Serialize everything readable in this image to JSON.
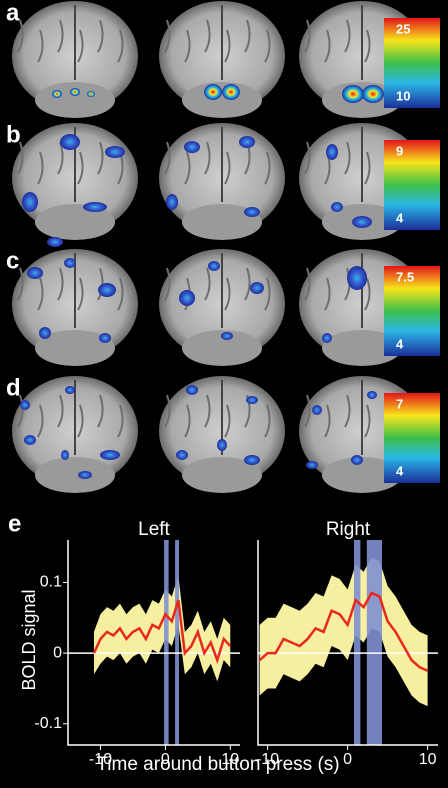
{
  "panels": [
    {
      "label": "a",
      "colorbar": {
        "max": "25",
        "min": "10"
      }
    },
    {
      "label": "b",
      "colorbar": {
        "max": "9",
        "min": "4"
      }
    },
    {
      "label": "c",
      "colorbar": {
        "max": "7.5",
        "min": "4"
      }
    },
    {
      "label": "d",
      "colorbar": {
        "max": "7",
        "min": "4"
      }
    }
  ],
  "figure": {
    "label": "e",
    "xlabel": "Time around button press (s)",
    "ylabel": "BOLD signal"
  },
  "chart_data": [
    {
      "type": "line",
      "title": "Left",
      "x": [
        -11,
        -10,
        -9,
        -8,
        -7,
        -6,
        -5,
        -4,
        -3,
        -2,
        -1,
        0,
        1,
        2,
        3,
        4,
        5,
        6,
        7,
        8,
        9,
        10
      ],
      "values": [
        0.0,
        0.02,
        0.03,
        0.025,
        0.035,
        0.02,
        0.03,
        0.035,
        0.02,
        0.04,
        0.035,
        0.055,
        0.045,
        0.075,
        0.0,
        0.01,
        0.03,
        0.0,
        0.015,
        -0.01,
        0.02,
        0.01
      ],
      "lower": [
        -0.03,
        -0.015,
        -0.005,
        -0.01,
        0.0,
        -0.015,
        -0.005,
        0.0,
        -0.015,
        0.005,
        0.0,
        0.02,
        0.01,
        0.04,
        -0.03,
        -0.02,
        0.0,
        -0.03,
        -0.015,
        -0.04,
        -0.01,
        -0.02
      ],
      "upper": [
        0.03,
        0.055,
        0.065,
        0.06,
        0.07,
        0.055,
        0.065,
        0.07,
        0.055,
        0.075,
        0.07,
        0.09,
        0.08,
        0.11,
        0.03,
        0.04,
        0.06,
        0.03,
        0.045,
        0.02,
        0.05,
        0.04
      ],
      "color": "#e8281e",
      "band_color": "#f7efa0",
      "highlight_color": "#7f8fd0",
      "highlights": [
        [
          -0.2,
          0.5
        ],
        [
          1.5,
          2.1
        ]
      ],
      "xlim": [
        -15,
        11.5
      ],
      "ylim": [
        -0.13,
        0.16
      ],
      "xticks": [
        -10,
        0,
        10
      ],
      "yticks": [
        -0.1,
        0,
        0.1
      ]
    },
    {
      "type": "line",
      "title": "Right",
      "x": [
        -11,
        -10,
        -9,
        -8,
        -7,
        -6,
        -5,
        -4,
        -3,
        -2,
        -1,
        0,
        1,
        2,
        3,
        4,
        5,
        6,
        7,
        8,
        9,
        10
      ],
      "values": [
        -0.01,
        0.0,
        0.0,
        0.02,
        0.015,
        0.01,
        0.02,
        0.035,
        0.03,
        0.06,
        0.055,
        0.04,
        0.075,
        0.065,
        0.085,
        0.08,
        0.045,
        0.03,
        0.01,
        -0.01,
        -0.02,
        -0.025
      ],
      "lower": [
        -0.06,
        -0.05,
        -0.05,
        -0.03,
        -0.035,
        -0.04,
        -0.03,
        -0.015,
        -0.02,
        0.01,
        0.005,
        -0.01,
        0.025,
        0.015,
        0.035,
        0.03,
        -0.005,
        -0.02,
        -0.04,
        -0.06,
        -0.07,
        -0.075
      ],
      "upper": [
        0.04,
        0.05,
        0.05,
        0.07,
        0.065,
        0.06,
        0.07,
        0.085,
        0.08,
        0.11,
        0.105,
        0.09,
        0.125,
        0.115,
        0.135,
        0.13,
        0.095,
        0.08,
        0.06,
        0.04,
        0.03,
        0.025
      ],
      "color": "#e8281e",
      "band_color": "#f7efa0",
      "highlight_color": "#7f8fd0",
      "highlights": [
        [
          0.8,
          1.6
        ],
        [
          2.4,
          4.3
        ]
      ],
      "xlim": [
        -11.2,
        11.3
      ],
      "ylim": [
        -0.13,
        0.16
      ],
      "xticks": [
        -10,
        0,
        10
      ]
    }
  ]
}
